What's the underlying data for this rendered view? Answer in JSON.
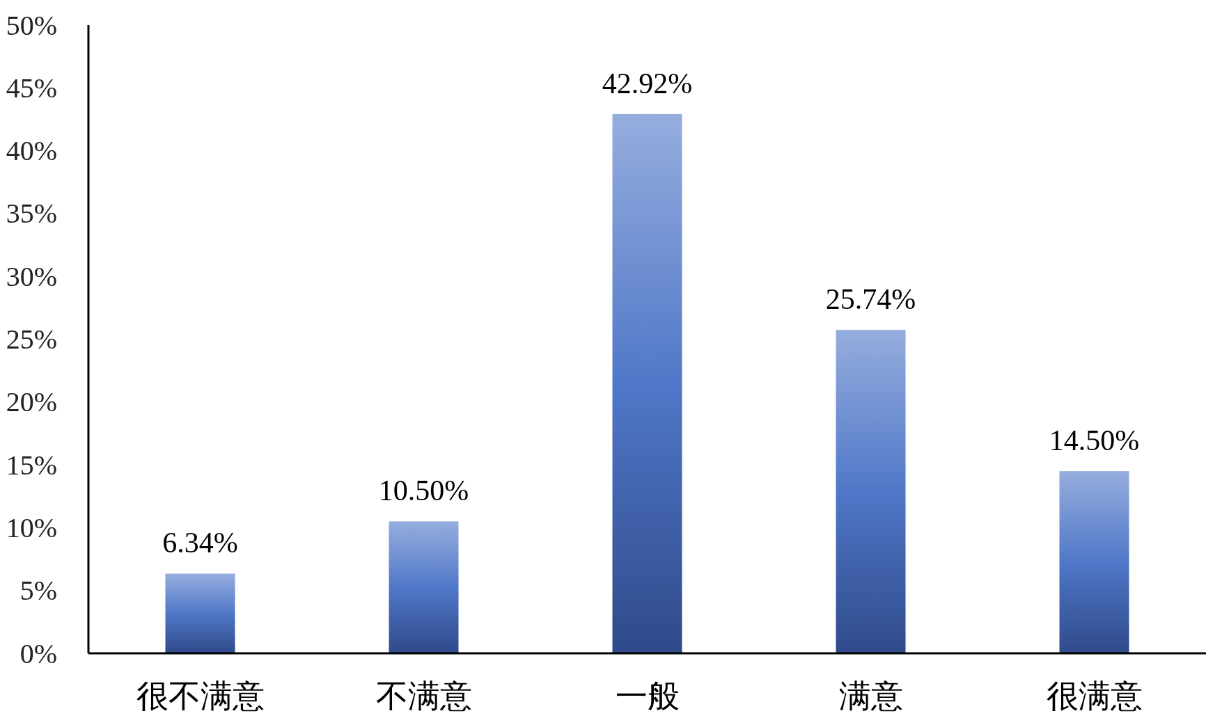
{
  "chart_data": {
    "type": "bar",
    "categories": [
      "很不满意",
      "不满意",
      "一般",
      "满意",
      "很满意"
    ],
    "values": [
      6.34,
      10.5,
      42.92,
      25.74,
      14.5
    ],
    "value_labels": [
      "6.34%",
      "10.50%",
      "42.92%",
      "25.74%",
      "14.50%"
    ],
    "color": "#5077c8",
    "ylim": [
      0,
      50
    ],
    "yticks": [
      {
        "value": 0,
        "label": "0%"
      },
      {
        "value": 5,
        "label": "5%"
      },
      {
        "value": 10,
        "label": "10%"
      },
      {
        "value": 15,
        "label": "15%"
      },
      {
        "value": 20,
        "label": "20%"
      },
      {
        "value": 25,
        "label": "25%"
      },
      {
        "value": 30,
        "label": "30%"
      },
      {
        "value": 35,
        "label": "35%"
      },
      {
        "value": 40,
        "label": "40%"
      },
      {
        "value": 45,
        "label": "45%"
      },
      {
        "value": 50,
        "label": "50%"
      }
    ],
    "grid": false
  }
}
